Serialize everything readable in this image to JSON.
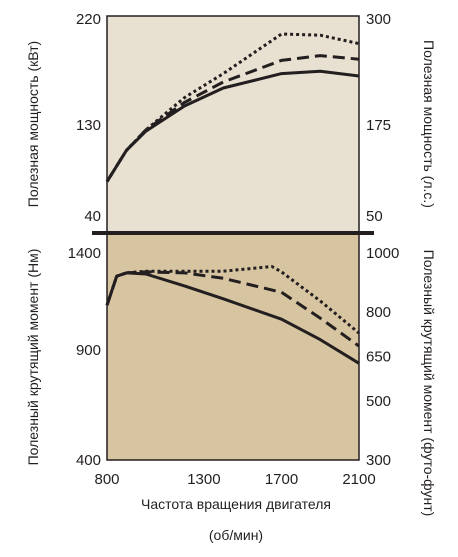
{
  "chart_data": [
    {
      "type": "line",
      "panel": "power",
      "background": "#e8e0d0",
      "ylabel_left": "Полезная мощность (кВт)",
      "ylabel_right": "Полезная мощность (л.с.)",
      "ylim_left": [
        40,
        220
      ],
      "ylim_right": [
        50,
        300
      ],
      "yticks_left": [
        "220",
        "130",
        "40"
      ],
      "yticks_right": [
        "300",
        "175",
        "50"
      ],
      "series": [
        {
          "style": "solid",
          "x": [
            800,
            900,
            1000,
            1200,
            1400,
            1700,
            1900,
            2100
          ],
          "y": [
            82,
            108,
            124,
            145,
            160,
            172,
            174,
            170
          ]
        },
        {
          "style": "dashed",
          "x": [
            800,
            900,
            1000,
            1200,
            1400,
            1700,
            1900,
            2100
          ],
          "y": [
            82,
            108,
            125,
            148,
            165,
            183,
            187,
            184
          ]
        },
        {
          "style": "dotted",
          "x": [
            800,
            900,
            1000,
            1200,
            1400,
            1700,
            1900,
            2100
          ],
          "y": [
            82,
            108,
            125,
            152,
            172,
            205,
            204,
            197
          ]
        }
      ]
    },
    {
      "type": "line",
      "panel": "torque",
      "background": "#d7c4a0",
      "ylabel_left": "Полезный крутящий момент (Нм)",
      "ylabel_right": "Полезный крутящий момент (футо-фунт)",
      "ylim_left": [
        400,
        1400
      ],
      "ylim_right": [
        300,
        1000
      ],
      "yticks_left": [
        "1400",
        "900",
        "400"
      ],
      "yticks_right": [
        "1000",
        "800",
        "650",
        "500",
        "300"
      ],
      "yticks_right_values": [
        1000,
        800,
        650,
        500,
        300
      ],
      "xlabel": "Частота вращения двигателя",
      "xlabel_unit": "(об/мин)",
      "xlim": [
        800,
        2100
      ],
      "xticks": [
        "800",
        "1300",
        "1700",
        "2100"
      ],
      "xtick_values": [
        800,
        1300,
        1700,
        2100
      ],
      "series": [
        {
          "style": "solid",
          "x": [
            800,
            850,
            900,
            1000,
            1200,
            1400,
            1700,
            1900,
            2100
          ],
          "y": [
            1120,
            1255,
            1270,
            1265,
            1210,
            1150,
            1055,
            960,
            850
          ]
        },
        {
          "style": "dashed",
          "x": [
            800,
            850,
            900,
            1000,
            1200,
            1400,
            1700,
            1900,
            2100
          ],
          "y": [
            1120,
            1255,
            1270,
            1275,
            1270,
            1245,
            1180,
            1060,
            930
          ]
        },
        {
          "style": "dotted",
          "x": [
            800,
            850,
            900,
            1000,
            1200,
            1400,
            1650,
            1700,
            1900,
            2100
          ],
          "y": [
            1120,
            1255,
            1270,
            1278,
            1278,
            1278,
            1300,
            1275,
            1140,
            990
          ]
        }
      ]
    }
  ]
}
